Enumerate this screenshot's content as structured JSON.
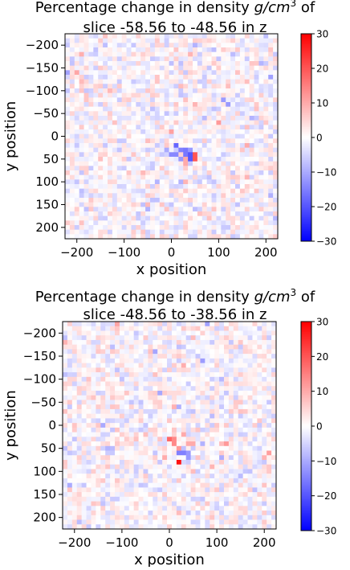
{
  "chart_data": [
    {
      "type": "heatmap",
      "title_lines": [
        "Percentage change in density g/cm3 of",
        "slice -58.56 to -48.56 in z"
      ],
      "title_prefix": "Percentage change in density ",
      "title_unit_g": "g",
      "title_unit_cm": "/cm",
      "title_unit_exp": "3",
      "title_suffix": " of",
      "title_line2": "slice -58.56 to -48.56 in z",
      "xlabel": "x position",
      "ylabel": "y position",
      "xlim": [
        -225,
        225
      ],
      "ylim": [
        225,
        -225
      ],
      "y_inverted": true,
      "xticks": [
        -200,
        -100,
        0,
        100,
        200
      ],
      "yticks": [
        -200,
        -150,
        -100,
        -50,
        0,
        50,
        100,
        150,
        200
      ],
      "colorbar": {
        "colormap": "bwr",
        "min": -30,
        "max": 30,
        "ticks": [
          -30,
          -20,
          -10,
          0,
          10,
          20,
          30
        ]
      },
      "grid_cells": [
        45,
        45
      ],
      "background_noise_pct": [
        -8,
        8
      ],
      "features": [
        {
          "x": 10,
          "y": 20,
          "value": -18
        },
        {
          "x": 22,
          "y": 32,
          "value": -15
        },
        {
          "x": 32,
          "y": 35,
          "value": -16
        },
        {
          "x": 38,
          "y": 45,
          "value": -20
        },
        {
          "x": 5,
          "y": 40,
          "value": -14
        },
        {
          "x": 18,
          "y": 48,
          "value": -12
        },
        {
          "x": 50,
          "y": 45,
          "value": 20
        },
        {
          "x": 28,
          "y": 55,
          "value": 10
        },
        {
          "x": -10,
          "y": 30,
          "value": -10
        },
        {
          "x": 42,
          "y": 28,
          "value": -12
        }
      ]
    },
    {
      "type": "heatmap",
      "title_lines": [
        "Percentage change in density g/cm3 of",
        "slice -48.56 to -38.56 in z"
      ],
      "title_prefix": "Percentage change in density ",
      "title_unit_g": "g",
      "title_unit_cm": "/cm",
      "title_unit_exp": "3",
      "title_suffix": " of",
      "title_line2": "slice -48.56 to -38.56 in z",
      "xlabel": "x position",
      "ylabel": "y position",
      "xlim": [
        -225,
        225
      ],
      "ylim": [
        225,
        -225
      ],
      "y_inverted": true,
      "xticks": [
        -200,
        -100,
        0,
        100,
        200
      ],
      "yticks": [
        -200,
        -150,
        -100,
        -50,
        0,
        50,
        100,
        150,
        200
      ],
      "colorbar": {
        "colormap": "bwr",
        "min": -30,
        "max": 30,
        "ticks": [
          -30,
          -20,
          -10,
          0,
          10,
          20,
          30
        ]
      },
      "grid_cells": [
        45,
        45
      ],
      "background_noise_pct": [
        -8,
        8
      ],
      "features": [
        {
          "x": 20,
          "y": 78,
          "value": 28
        },
        {
          "x": 0,
          "y": 28,
          "value": 18
        },
        {
          "x": 10,
          "y": 35,
          "value": 14
        },
        {
          "x": 25,
          "y": 60,
          "value": -15
        },
        {
          "x": 38,
          "y": 65,
          "value": -12
        },
        {
          "x": 18,
          "y": 50,
          "value": 12
        },
        {
          "x": 45,
          "y": 40,
          "value": 10
        },
        {
          "x": 120,
          "y": 42,
          "value": 12
        },
        {
          "x": 32,
          "y": 20,
          "value": 10
        }
      ]
    }
  ]
}
